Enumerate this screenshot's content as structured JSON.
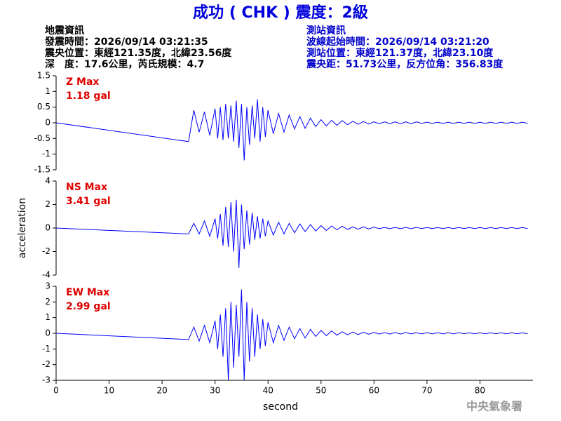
{
  "title": "成功 ( CHK ) 震度：2級",
  "quake_info": {
    "heading": "地震資訊",
    "time": "發震時間：2026/09/14 03:21:35",
    "location": "震央位置：東經121.35度，北緯23.56度",
    "depth": "深　度：17.6公里，芮氏規模：4.7"
  },
  "station_info": {
    "heading": "測站資訊",
    "start_time": "波線起始時間：2026/09/14 03:21:20",
    "location": "測站位置：東經121.37度，北緯23.10度",
    "distance": "震央距：51.73公里，反方位角：356.83度"
  },
  "footer": "中央氣象署",
  "chart_data": [
    {
      "type": "line",
      "annotation": "Z Max",
      "max_label": "1.18 gal",
      "color": "#0000ff",
      "xlim": [
        0,
        90
      ],
      "ylim": [
        -1.5,
        1.5
      ],
      "yticks": [
        1.5,
        1,
        0.5,
        0,
        -0.5,
        -1,
        -1.5
      ],
      "x": [
        0,
        25,
        26,
        27,
        28,
        29,
        30,
        30.5,
        31,
        31.5,
        32,
        32.5,
        33,
        33.5,
        34,
        34.5,
        35,
        35.5,
        36,
        36.5,
        37,
        37.5,
        38,
        38.5,
        39,
        39.5,
        40,
        41,
        42,
        43,
        44,
        45,
        46,
        47,
        48,
        49,
        50,
        51,
        52,
        53,
        54,
        55,
        56,
        57,
        58,
        59,
        60,
        61,
        62,
        63,
        64,
        65,
        66,
        67,
        68,
        69,
        70,
        71,
        72,
        73,
        74,
        75,
        76,
        77,
        78,
        79,
        80,
        81,
        82,
        83,
        84,
        85,
        86,
        87,
        88,
        89
      ],
      "values": [
        0,
        -0.6,
        0.4,
        -0.3,
        0.35,
        -0.4,
        0.45,
        -0.5,
        0.5,
        -0.55,
        0.6,
        -0.5,
        0.55,
        -0.6,
        0.7,
        -0.8,
        0.6,
        -1.2,
        0.5,
        -0.7,
        0.55,
        -0.5,
        0.75,
        -0.6,
        0.5,
        -0.45,
        0.4,
        -0.35,
        0.3,
        -0.3,
        0.25,
        -0.2,
        0.2,
        -0.18,
        0.15,
        -0.12,
        0.1,
        -0.1,
        0.08,
        -0.08,
        0.07,
        -0.06,
        0.05,
        -0.05,
        0.04,
        -0.04,
        0.03,
        -0.03,
        0.03,
        -0.03,
        0.03,
        -0.03,
        0.03,
        -0.03,
        0.03,
        -0.02,
        0.02,
        -0.02,
        0.02,
        -0.02,
        0.02,
        -0.02,
        0.02,
        -0.02,
        0.02,
        -0.02,
        0.02,
        -0.02,
        0.02,
        -0.02,
        0.02,
        -0.02,
        0.02,
        -0.02,
        0.02,
        -0.02
      ]
    },
    {
      "type": "line",
      "annotation": "NS Max",
      "max_label": "3.41 gal",
      "color": "#0000ff",
      "ylabel": "acceleration",
      "xlim": [
        0,
        90
      ],
      "ylim": [
        -4,
        4
      ],
      "yticks": [
        4,
        2,
        0,
        -2,
        -4
      ],
      "x": [
        0,
        25,
        26,
        27,
        28,
        29,
        30,
        30.5,
        31,
        31.5,
        32,
        32.5,
        33,
        33.5,
        34,
        34.5,
        35,
        35.5,
        36,
        36.5,
        37,
        37.5,
        38,
        38.5,
        39,
        39.5,
        40,
        41,
        42,
        43,
        44,
        45,
        46,
        47,
        48,
        49,
        50,
        51,
        52,
        53,
        54,
        55,
        56,
        57,
        58,
        59,
        60,
        61,
        62,
        63,
        64,
        65,
        66,
        67,
        68,
        69,
        70,
        71,
        72,
        73,
        74,
        75,
        76,
        77,
        78,
        79,
        80,
        81,
        82,
        83,
        84,
        85,
        86,
        87,
        88,
        89
      ],
      "values": [
        0,
        -0.5,
        0.4,
        -0.5,
        0.6,
        -0.7,
        0.8,
        -0.9,
        1.2,
        -1.5,
        1.8,
        -1.6,
        2.2,
        -2.0,
        2.4,
        -3.4,
        2.0,
        -1.8,
        1.5,
        -1.4,
        1.3,
        -1.0,
        1.0,
        -0.9,
        0.8,
        -0.7,
        0.6,
        -0.6,
        0.5,
        -0.5,
        0.4,
        -0.4,
        0.35,
        -0.3,
        0.3,
        -0.25,
        0.2,
        -0.2,
        0.18,
        -0.15,
        0.15,
        -0.12,
        0.1,
        -0.1,
        0.1,
        -0.08,
        0.08,
        -0.06,
        0.06,
        -0.06,
        0.06,
        -0.06,
        0.06,
        -0.06,
        0.06,
        -0.05,
        0.05,
        -0.05,
        0.05,
        -0.05,
        0.05,
        -0.05,
        0.05,
        -0.05,
        0.05,
        -0.04,
        0.04,
        -0.04,
        0.04,
        -0.04,
        0.04,
        -0.04,
        0.04,
        -0.04,
        0.04,
        -0.04
      ]
    },
    {
      "type": "line",
      "annotation": "EW Max",
      "max_label": "2.99 gal",
      "color": "#0000ff",
      "xlabel": "second",
      "xlim": [
        0,
        90
      ],
      "ylim": [
        -3,
        3
      ],
      "yticks": [
        3,
        2,
        1,
        0,
        -1,
        -2,
        -3
      ],
      "xticks": [
        0,
        10,
        20,
        30,
        40,
        50,
        60,
        70,
        80
      ],
      "x": [
        0,
        25,
        26,
        27,
        28,
        29,
        30,
        30.5,
        31,
        31.5,
        32,
        32.5,
        33,
        33.5,
        34,
        34.5,
        35,
        35.5,
        36,
        36.5,
        37,
        37.5,
        38,
        38.5,
        39,
        39.5,
        40,
        41,
        42,
        43,
        44,
        45,
        46,
        47,
        48,
        49,
        50,
        51,
        52,
        53,
        54,
        55,
        56,
        57,
        58,
        59,
        60,
        61,
        62,
        63,
        64,
        65,
        66,
        67,
        68,
        69,
        70,
        71,
        72,
        73,
        74,
        75,
        76,
        77,
        78,
        79,
        80,
        81,
        82,
        83,
        84,
        85,
        86,
        87,
        88,
        89
      ],
      "values": [
        0,
        -0.4,
        0.4,
        -0.5,
        0.5,
        -0.6,
        0.8,
        -1.0,
        1.2,
        -1.5,
        1.6,
        -3.0,
        2.0,
        -2.2,
        1.8,
        -1.5,
        2.8,
        -3.0,
        2.0,
        -1.8,
        1.6,
        -1.5,
        1.2,
        -1.0,
        0.9,
        -0.8,
        0.7,
        -0.6,
        0.5,
        -0.45,
        0.4,
        -0.35,
        0.3,
        -0.3,
        0.25,
        -0.2,
        0.18,
        -0.15,
        0.15,
        -0.12,
        0.1,
        -0.1,
        0.08,
        -0.08,
        0.07,
        -0.06,
        0.06,
        -0.05,
        0.05,
        -0.05,
        0.05,
        -0.05,
        0.05,
        -0.04,
        0.04,
        -0.04,
        0.04,
        -0.04,
        0.04,
        -0.04,
        0.04,
        -0.04,
        0.04,
        -0.03,
        0.03,
        -0.03,
        0.03,
        -0.03,
        0.03,
        -0.03,
        0.03,
        -0.03,
        0.03,
        -0.03,
        0.03,
        -0.03
      ]
    }
  ]
}
